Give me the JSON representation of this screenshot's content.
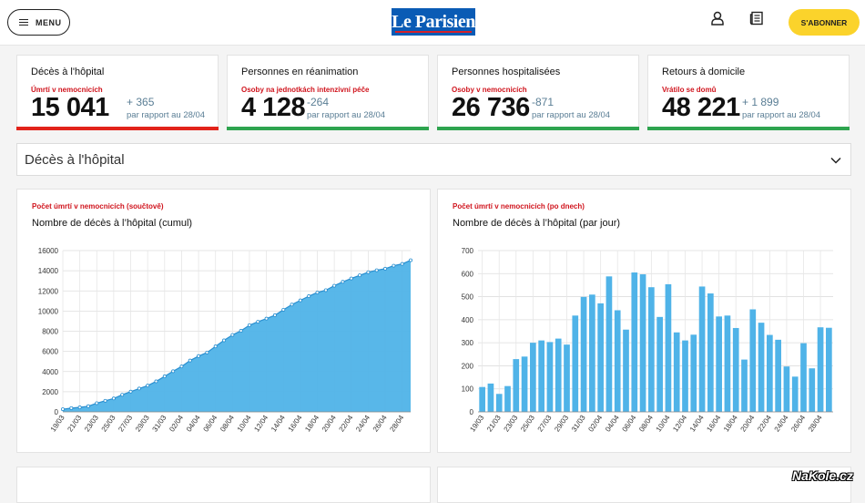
{
  "header": {
    "menu_label": "MENU",
    "logo_text": "Le Parisien",
    "subscribe_label": "S'ABONNER"
  },
  "stats": [
    {
      "title": "Décès à l'hôpital",
      "subtitle": "Úmrtí v nemocnicích",
      "value": "15 041",
      "delta": "+ 365",
      "since": "par rapport au 28/04",
      "color": "#e2231a"
    },
    {
      "title": "Personnes en réanimation",
      "subtitle": "Osoby na jednotkách intenzivní péče",
      "value": "4 128",
      "delta": "-264",
      "since": "par rapport au 28/04",
      "color": "#2ea44f"
    },
    {
      "title": "Personnes hospitalisées",
      "subtitle": "Osoby v nemocnicích",
      "value": "26 736",
      "delta": "-871",
      "since": "par rapport au 28/04",
      "color": "#2ea44f"
    },
    {
      "title": "Retours à domicile",
      "subtitle": "Vrátilo se domů",
      "value": "48 221",
      "delta": "+ 1 899",
      "since": "par rapport au 28/04",
      "color": "#2ea44f"
    }
  ],
  "accordion": {
    "label": "Décès à l'hôpital"
  },
  "colors": {
    "accent": "#fbd32b",
    "series": "#4fb3e8",
    "series_line": "#2a8fd0"
  },
  "watermark": "NaKole.cz",
  "chart_data": [
    {
      "type": "area",
      "red_title": "Počet úmrtí v nemocnicích (součtově)",
      "title": "Nombre de décès à l’hôpital (cumul)",
      "x": [
        "19/03",
        "20/03",
        "21/03",
        "22/03",
        "23/03",
        "24/03",
        "25/03",
        "26/03",
        "27/03",
        "28/03",
        "29/03",
        "30/03",
        "31/03",
        "01/04",
        "02/04",
        "03/04",
        "04/04",
        "05/04",
        "06/04",
        "07/04",
        "08/04",
        "09/04",
        "10/04",
        "11/04",
        "12/04",
        "13/04",
        "14/04",
        "15/04",
        "16/04",
        "17/04",
        "18/04",
        "19/04",
        "20/04",
        "21/04",
        "22/04",
        "23/04",
        "24/04",
        "25/04",
        "26/04",
        "27/04",
        "28/04",
        "29/04"
      ],
      "x_tick_labels": [
        "19/03",
        "21/03",
        "23/03",
        "25/03",
        "27/03",
        "29/03",
        "31/03",
        "02/04",
        "04/04",
        "06/04",
        "08/04",
        "10/04",
        "12/04",
        "14/04",
        "16/04",
        "18/04",
        "20/04",
        "22/04",
        "24/04",
        "26/04",
        "28/04"
      ],
      "values": [
        264,
        372,
        450,
        562,
        860,
        1100,
        1331,
        1696,
        2006,
        2314,
        2606,
        3024,
        3523,
        4032,
        4503,
        5091,
        5532,
        5889,
        6494,
        7091,
        7632,
        8044,
        8598,
        8943,
        9253,
        9588,
        10129,
        10643,
        11060,
        11478,
        11842,
        12069,
        12513,
        12900,
        13236,
        13547,
        13852,
        14050,
        14202,
        14500,
        14676,
        15041
      ],
      "ylim": [
        0,
        16000
      ],
      "yticks": [
        0,
        2000,
        4000,
        6000,
        8000,
        10000,
        12000,
        14000,
        16000
      ],
      "grid": true
    },
    {
      "type": "bar",
      "red_title": "Počet úmrtí v nemocnicích (po dnech)",
      "title": "Nombre de décès à l’hôpital (par jour)",
      "categories": [
        "19/03",
        "20/03",
        "21/03",
        "22/03",
        "23/03",
        "24/03",
        "25/03",
        "26/03",
        "27/03",
        "28/03",
        "29/03",
        "30/03",
        "31/03",
        "01/04",
        "02/04",
        "03/04",
        "04/04",
        "05/04",
        "06/04",
        "07/04",
        "08/04",
        "09/04",
        "10/04",
        "11/04",
        "12/04",
        "13/04",
        "14/04",
        "15/04",
        "16/04",
        "17/04",
        "18/04",
        "19/04",
        "20/04",
        "21/04",
        "22/04",
        "23/04",
        "24/04",
        "25/04",
        "26/04",
        "27/04",
        "28/04",
        "29/04"
      ],
      "x_tick_labels": [
        "19/03",
        "21/03",
        "23/03",
        "25/03",
        "27/03",
        "29/03",
        "31/03",
        "02/04",
        "04/04",
        "06/04",
        "08/04",
        "10/04",
        "12/04",
        "14/04",
        "16/04",
        "18/04",
        "20/04",
        "22/04",
        "24/04",
        "26/04",
        "28/04"
      ],
      "values": [
        108,
        123,
        78,
        112,
        229,
        240,
        300,
        310,
        303,
        318,
        292,
        418,
        499,
        509,
        471,
        588,
        441,
        357,
        605,
        597,
        541,
        412,
        554,
        345,
        310,
        335,
        544,
        514,
        414,
        418,
        364,
        227,
        445,
        387,
        334,
        313,
        197,
        153,
        298,
        189,
        367,
        365
      ],
      "ylim": [
        0,
        700
      ],
      "yticks": [
        0,
        100,
        200,
        300,
        400,
        500,
        600,
        700
      ],
      "grid": true
    }
  ]
}
